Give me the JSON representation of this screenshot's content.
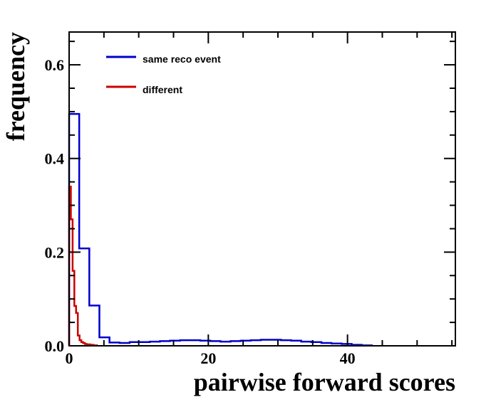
{
  "chart_data": {
    "type": "line",
    "title": "",
    "xlabel": "pairwise forward scores",
    "ylabel": "frequency",
    "xlim": [
      0,
      55.5
    ],
    "ylim": [
      0,
      0.67
    ],
    "x_ticks": [
      0,
      20,
      40
    ],
    "x_tick_labels": [
      "0",
      "20",
      "40"
    ],
    "y_ticks": [
      0.0,
      0.2,
      0.4,
      0.6
    ],
    "y_tick_labels": [
      "0.0",
      "0.2",
      "0.4",
      "0.6"
    ],
    "x_minor_step": 5,
    "y_minor_step": 0.05,
    "grid": false,
    "legend_position": "top-left",
    "series": [
      {
        "name": "same reco event",
        "color": "#0000cc",
        "style": "step",
        "bin_edges": [
          0,
          1.45,
          2.9,
          4.35,
          5.8,
          7.25,
          8.7,
          10.15,
          11.6,
          13.05,
          14.5,
          15.95,
          17.4,
          18.85,
          20.3,
          21.75,
          23.2,
          24.65,
          26.1,
          27.55,
          29.0,
          30.45,
          31.9,
          33.35,
          34.8,
          36.25,
          37.7,
          39.15,
          40.6,
          42.05,
          43.5
        ],
        "values": [
          0.495,
          0.208,
          0.086,
          0.018,
          0.007,
          0.006,
          0.008,
          0.008,
          0.009,
          0.01,
          0.011,
          0.012,
          0.012,
          0.011,
          0.01,
          0.009,
          0.01,
          0.011,
          0.012,
          0.013,
          0.013,
          0.012,
          0.011,
          0.009,
          0.008,
          0.006,
          0.005,
          0.004,
          0.002,
          0.001
        ]
      },
      {
        "name": "different",
        "color": "#cc0000",
        "style": "step",
        "bin_edges": [
          0,
          0.25,
          0.5,
          0.75,
          1.0,
          1.25,
          1.5,
          1.75,
          2.0,
          2.25,
          2.5,
          3.0,
          3.5,
          4.0
        ],
        "values": [
          0.34,
          0.27,
          0.16,
          0.085,
          0.07,
          0.022,
          0.012,
          0.008,
          0.006,
          0.004,
          0.003,
          0.002,
          0.001
        ]
      }
    ]
  }
}
